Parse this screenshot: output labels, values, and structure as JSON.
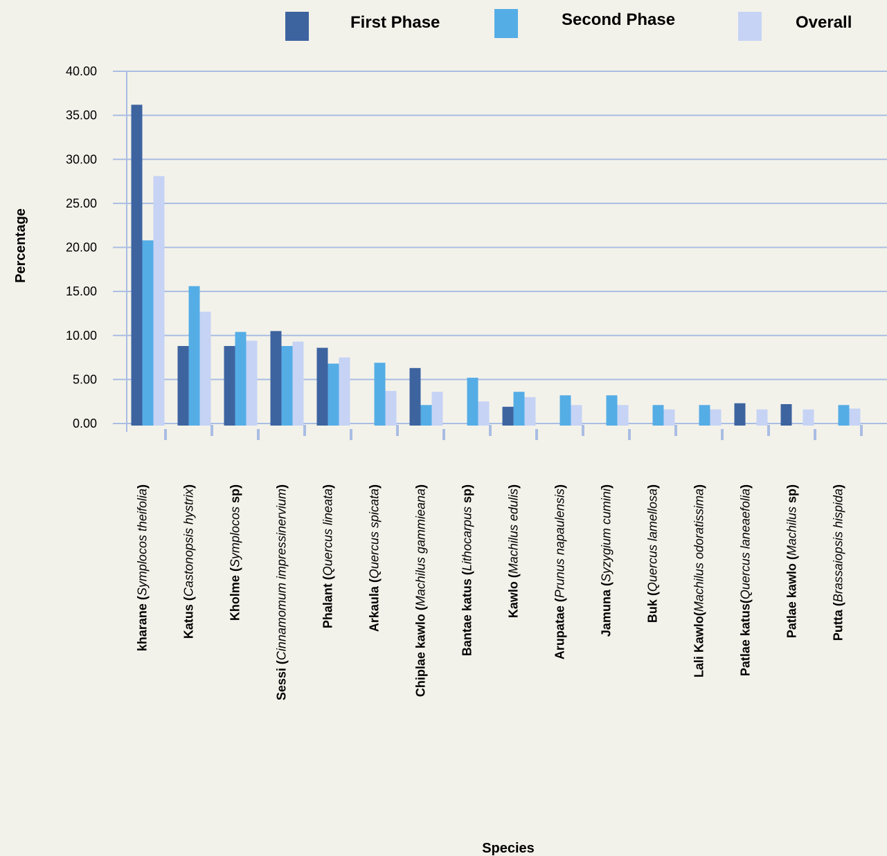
{
  "chart_data": {
    "type": "bar",
    "xlabel": "Species",
    "ylabel": "Percentage",
    "ylim": [
      0,
      40
    ],
    "yticks": [
      "0.00",
      "5.00",
      "10.00",
      "15.00",
      "20.00",
      "25.00",
      "30.00",
      "35.00",
      "40.00"
    ],
    "grid": true,
    "legend_position": "top",
    "categories": [
      {
        "common": "kharane (",
        "scientific": "Symplocos theifolia",
        "suffix": ")"
      },
      {
        "common": "Katus (",
        "scientific": "Castonopsis hystrix",
        "suffix": ")"
      },
      {
        "common": "Kholme (",
        "scientific": "Symplocos",
        "suffix": " sp)"
      },
      {
        "common": "Sessi (",
        "scientific": "Cinnamomum impressinervium",
        "suffix": ")"
      },
      {
        "common": "Phalant (",
        "scientific": "Quercus lineata",
        "suffix": ")"
      },
      {
        "common": "Arkaula (",
        "scientific": "Quercus spicata",
        "suffix": ")"
      },
      {
        "common": "Chiplae kawlo (",
        "scientific": "Machilus gammieana",
        "suffix": ")"
      },
      {
        "common": "Bantae katus (",
        "scientific": "Lithocarpus",
        "suffix": " sp)"
      },
      {
        "common": "Kawlo (",
        "scientific": "Machilus edulis",
        "suffix": ")"
      },
      {
        "common": "Arupatae (",
        "scientific": "Prunus napaulensis",
        "suffix": ")"
      },
      {
        "common": "Jamuna (",
        "scientific": "Syzygium cumini",
        "suffix": ")"
      },
      {
        "common": "Buk (",
        "scientific": "Quercus lamellosa",
        "suffix": ")"
      },
      {
        "common": "Lali Kawlo(",
        "scientific": "Machilus odoratissima",
        "suffix": ")"
      },
      {
        "common": "Patlae katus(",
        "scientific": "Quercus laneaefolia",
        "suffix": ")"
      },
      {
        "common": "Patlae kawlo (",
        "scientific": "Machilus",
        "suffix": " sp)"
      },
      {
        "common": "Putta (",
        "scientific": "Brassaiopsis hispida",
        "suffix": ")"
      }
    ],
    "series": [
      {
        "name": "First Phase",
        "color": "#3e64a0",
        "values": [
          36.2,
          8.8,
          8.8,
          10.5,
          8.6,
          0,
          6.3,
          0,
          1.9,
          0,
          0,
          0,
          0,
          2.3,
          2.2,
          0
        ]
      },
      {
        "name": "Second Phase",
        "color": "#55ade6",
        "values": [
          20.8,
          15.6,
          10.4,
          8.8,
          6.8,
          6.9,
          2.1,
          5.2,
          3.6,
          3.2,
          3.2,
          2.1,
          2.1,
          0,
          0,
          2.1
        ]
      },
      {
        "name": "Overall",
        "color": "#c6d3f5",
        "values": [
          28.1,
          12.7,
          9.4,
          9.3,
          7.5,
          3.7,
          3.6,
          2.5,
          3.0,
          2.1,
          2.1,
          1.6,
          1.6,
          1.6,
          1.6,
          1.7
        ]
      }
    ]
  }
}
